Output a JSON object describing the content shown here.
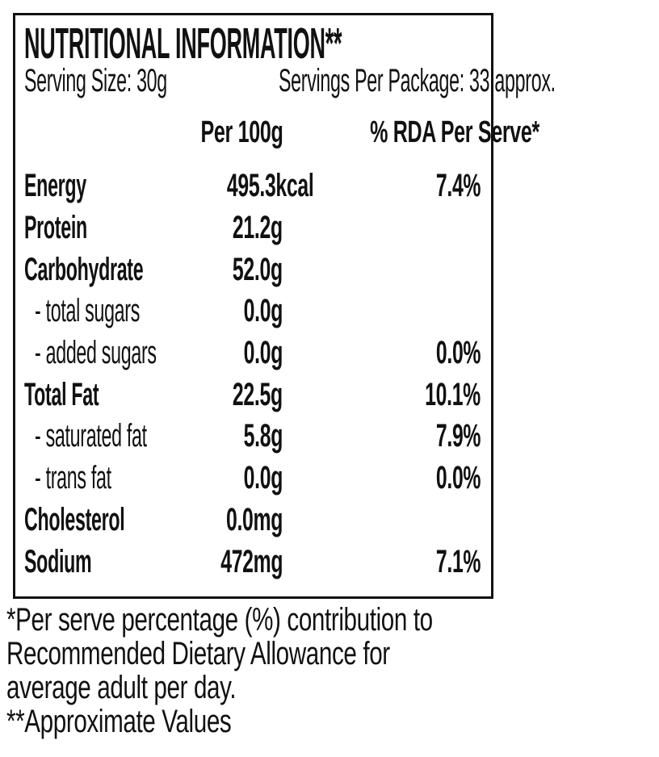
{
  "panel": {
    "title": "NUTRITIONAL INFORMATION**",
    "serving_size": "Serving Size: 30g",
    "servings_per_package": "Servings Per Package: 33 approx.",
    "columns": {
      "per_100g": "Per 100g",
      "rda_per_serve": "% RDA Per Serve*"
    },
    "rows": [
      {
        "label": "Energy",
        "per_100g": "495.3kcal",
        "rda": "7.4%"
      },
      {
        "label": "Protein",
        "per_100g": "21.2g",
        "rda": ""
      },
      {
        "label": "Carbohydrate",
        "per_100g": "52.0g",
        "rda": ""
      },
      {
        "label": "- total sugars",
        "per_100g": "0.0g",
        "rda": ""
      },
      {
        "label": "- added sugars",
        "per_100g": "0.0g",
        "rda": "0.0%"
      },
      {
        "label": "Total Fat",
        "per_100g": "22.5g",
        "rda": "10.1%"
      },
      {
        "label": "- saturated fat",
        "per_100g": "5.8g",
        "rda": "7.9%"
      },
      {
        "label": "- trans fat",
        "per_100g": "0.0g",
        "rda": "0.0%"
      },
      {
        "label": "Cholesterol",
        "per_100g": "0.0mg",
        "rda": ""
      },
      {
        "label": "Sodium",
        "per_100g": "472mg",
        "rda": "7.1%"
      }
    ]
  },
  "footnotes": {
    "line1": "*Per serve percentage (%) contribution to",
    "line2": "Recommended Dietary Allowance for",
    "line3": "average adult per day.",
    "line4": "**Approximate Values"
  },
  "colors": {
    "text": "#111111",
    "border": "#111111",
    "background": "#ffffff"
  }
}
